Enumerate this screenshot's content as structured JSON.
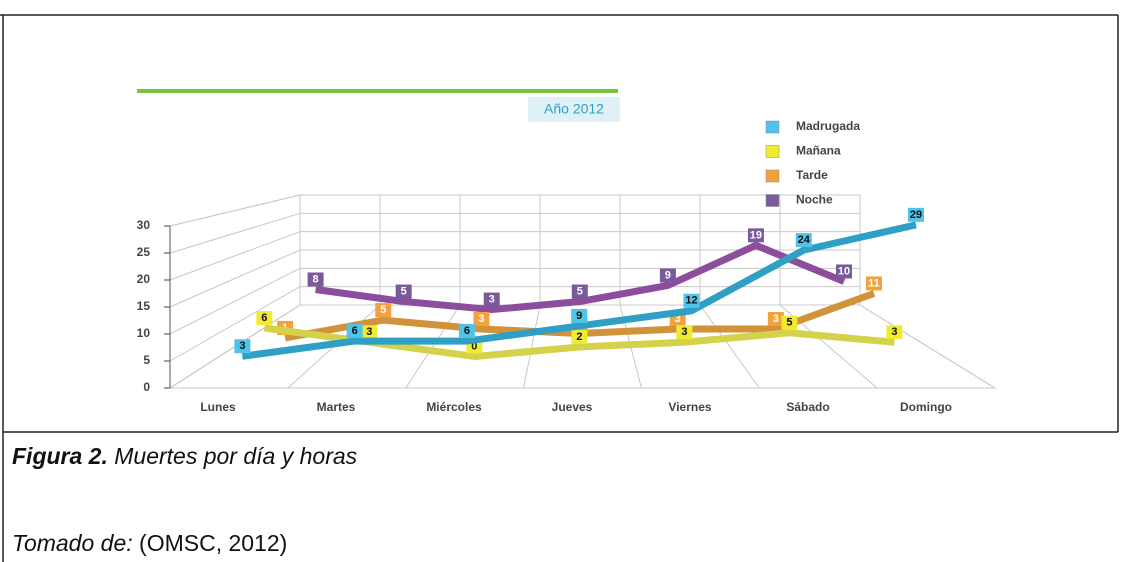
{
  "chart_data": {
    "type": "line",
    "title": "Año 2012",
    "categories": [
      "Lunes",
      "Martes",
      "Miércoles",
      "Jueves",
      "Viernes",
      "Sábado",
      "Domingo"
    ],
    "series": [
      {
        "name": "Madrugada",
        "color": "#2f9fc6",
        "values": [
          3,
          6,
          6,
          9,
          12,
          24,
          29
        ]
      },
      {
        "name": "Mañana",
        "color": "#d4d24a",
        "values": [
          6,
          3,
          0,
          2,
          3,
          5,
          3
        ]
      },
      {
        "name": "Tarde",
        "color": "#d1923a",
        "values": [
          1,
          5,
          3,
          2,
          3,
          3,
          11
        ]
      },
      {
        "name": "Noche",
        "color": "#8b4d9c",
        "values": [
          8,
          5,
          3,
          5,
          9,
          19,
          10
        ]
      }
    ],
    "ylim": [
      0,
      30
    ],
    "yticks": [
      0,
      5,
      10,
      15,
      20,
      25,
      30
    ],
    "grid": true,
    "legend": "top-right"
  },
  "caption": {
    "label": "Figura 2.",
    "text": "Muertes por día y horas"
  },
  "source": {
    "label": "Tomado de:",
    "text": "(OMSC, 2012)"
  }
}
